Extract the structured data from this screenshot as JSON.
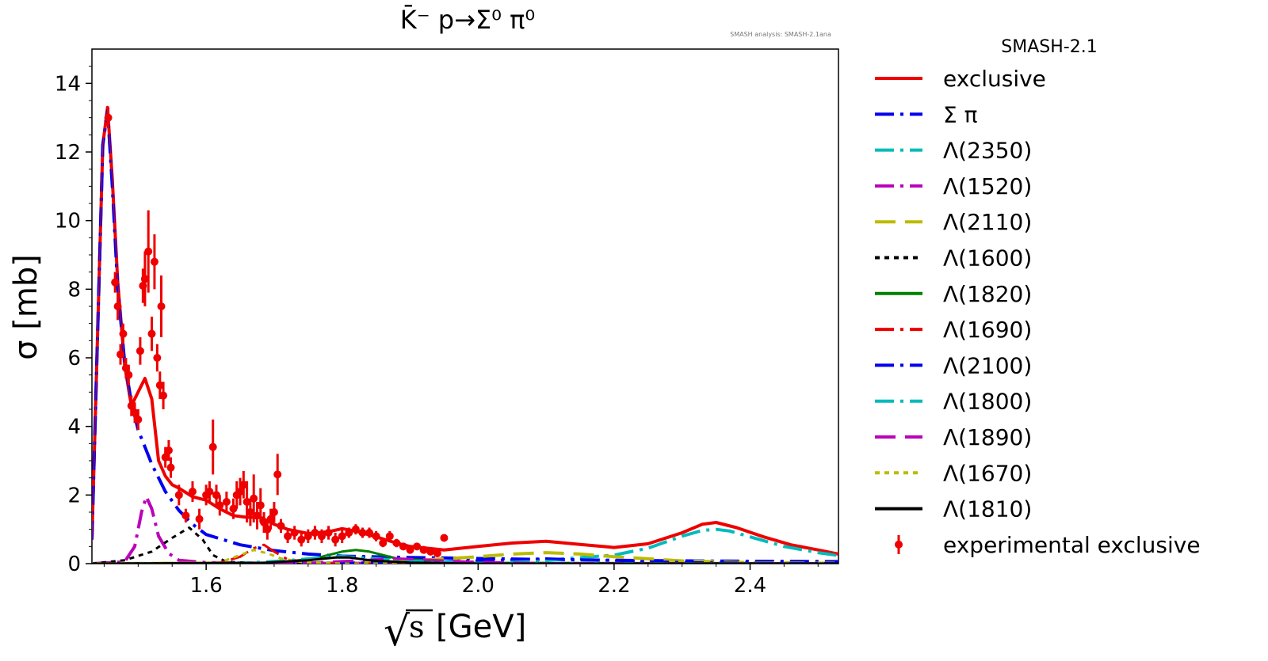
{
  "chart_data": {
    "type": "line",
    "title": "K̄⁻ p→Σ⁰ π⁰",
    "watermark": "SMASH analysis: SMASH-2.1ana",
    "xlabel_root": "√",
    "xlabel_s": "s",
    "xlabel_unit": "[GeV]",
    "ylabel": "σ [mb]",
    "xlim": [
      1.432,
      2.53
    ],
    "ylim": [
      0,
      15
    ],
    "xticks": [
      1.6,
      1.8,
      2.0,
      2.2,
      2.4
    ],
    "xtick_labels": [
      "1.6",
      "1.8",
      "2.0",
      "2.2",
      "2.4"
    ],
    "yticks": [
      0,
      2,
      4,
      6,
      8,
      10,
      12,
      14
    ],
    "ytick_labels": [
      "0",
      "2",
      "4",
      "6",
      "8",
      "10",
      "12",
      "14"
    ],
    "legend_title": "SMASH-2.1",
    "series": [
      {
        "name": "exclusive",
        "color": "#ee0000",
        "dash": "solid",
        "width": 4,
        "x": [
          1.432,
          1.44,
          1.448,
          1.455,
          1.462,
          1.47,
          1.48,
          1.49,
          1.5,
          1.51,
          1.52,
          1.53,
          1.54,
          1.55,
          1.56,
          1.58,
          1.6,
          1.62,
          1.64,
          1.66,
          1.68,
          1.7,
          1.72,
          1.75,
          1.78,
          1.8,
          1.82,
          1.85,
          1.88,
          1.9,
          1.95,
          2.0,
          2.05,
          2.1,
          2.15,
          2.2,
          2.25,
          2.3,
          2.33,
          2.35,
          2.38,
          2.42,
          2.46,
          2.5,
          2.53
        ],
        "y": [
          0.7,
          6.5,
          12.2,
          13.3,
          11.2,
          8.2,
          5.8,
          4.6,
          5.0,
          5.4,
          4.8,
          3.0,
          2.55,
          2.3,
          2.2,
          1.95,
          1.85,
          1.6,
          1.4,
          1.35,
          1.35,
          1.15,
          1.0,
          0.88,
          0.93,
          1.02,
          0.95,
          0.78,
          0.6,
          0.5,
          0.4,
          0.5,
          0.6,
          0.65,
          0.56,
          0.47,
          0.58,
          0.9,
          1.15,
          1.2,
          1.05,
          0.78,
          0.55,
          0.4,
          0.28
        ]
      },
      {
        "name": "Σ π",
        "color": "#0000ee",
        "dash": "long-dash-dot",
        "width": 4,
        "x": [
          1.432,
          1.44,
          1.448,
          1.455,
          1.462,
          1.47,
          1.48,
          1.49,
          1.5,
          1.52,
          1.54,
          1.56,
          1.58,
          1.6,
          1.65,
          1.7,
          1.75,
          1.8,
          1.9,
          2.0,
          2.1,
          2.2,
          2.3,
          2.4,
          2.53
        ],
        "y": [
          0.7,
          6.5,
          12.2,
          13.2,
          11,
          8.0,
          5.9,
          4.7,
          3.9,
          2.9,
          2.1,
          1.55,
          1.15,
          0.85,
          0.55,
          0.38,
          0.28,
          0.22,
          0.18,
          0.15,
          0.12,
          0.1,
          0.08,
          0.07,
          0.06
        ]
      },
      {
        "name": "Λ(2350)",
        "color": "#00bbbb",
        "dash": "long-dash-dot",
        "width": 4,
        "x": [
          1.432,
          1.9,
          2.0,
          2.1,
          2.2,
          2.25,
          2.3,
          2.33,
          2.35,
          2.37,
          2.4,
          2.45,
          2.5,
          2.53
        ],
        "y": [
          0,
          0.02,
          0.05,
          0.1,
          0.25,
          0.45,
          0.8,
          0.97,
          1.0,
          0.95,
          0.78,
          0.5,
          0.32,
          0.24
        ]
      },
      {
        "name": "Λ(1520)",
        "color": "#bb00bb",
        "dash": "long-dash-dot",
        "width": 4,
        "x": [
          1.432,
          1.48,
          1.495,
          1.505,
          1.512,
          1.52,
          1.53,
          1.545,
          1.56,
          1.6,
          1.7,
          2.53
        ],
        "y": [
          0,
          0.05,
          0.5,
          1.5,
          1.95,
          1.6,
          0.8,
          0.3,
          0.1,
          0.03,
          0.01,
          0
        ]
      },
      {
        "name": "Λ(2110)",
        "color": "#bbbb00",
        "dash": "long-dash",
        "width": 4,
        "x": [
          1.432,
          1.8,
          1.9,
          2.0,
          2.05,
          2.1,
          2.15,
          2.2,
          2.3,
          2.4,
          2.53
        ],
        "y": [
          0,
          0.02,
          0.08,
          0.2,
          0.28,
          0.32,
          0.28,
          0.2,
          0.08,
          0.03,
          0.01
        ]
      },
      {
        "name": "Λ(1600)",
        "color": "#000000",
        "dash": "dotted",
        "width": 3,
        "x": [
          1.432,
          1.48,
          1.52,
          1.55,
          1.575,
          1.595,
          1.61,
          1.63,
          1.7,
          2.53
        ],
        "y": [
          0,
          0.1,
          0.35,
          0.75,
          1.05,
          0.7,
          0.25,
          0.05,
          0,
          0
        ]
      },
      {
        "name": "Λ(1820)",
        "color": "#008000",
        "dash": "solid",
        "width": 3,
        "x": [
          1.432,
          1.7,
          1.76,
          1.8,
          1.82,
          1.84,
          1.88,
          1.95,
          2.0,
          2.53
        ],
        "y": [
          0,
          0.02,
          0.15,
          0.35,
          0.4,
          0.35,
          0.15,
          0.05,
          0.02,
          0
        ]
      },
      {
        "name": "Λ(1690)",
        "color": "#ee0000",
        "dash": "long-dash-dot",
        "width": 3,
        "x": [
          1.432,
          1.62,
          1.65,
          1.67,
          1.685,
          1.7,
          1.72,
          1.76,
          1.85,
          2.53
        ],
        "y": [
          0,
          0.02,
          0.2,
          0.45,
          0.55,
          0.35,
          0.12,
          0.03,
          0,
          0
        ]
      },
      {
        "name": "Λ(2100)",
        "color": "#0000ee",
        "dash": "long-dash-dot",
        "width": 3,
        "x": [
          1.432,
          1.8,
          1.95,
          2.05,
          2.1,
          2.15,
          2.25,
          2.35,
          2.53
        ],
        "y": [
          0,
          0.02,
          0.06,
          0.12,
          0.15,
          0.12,
          0.06,
          0.03,
          0.01
        ]
      },
      {
        "name": "Λ(1800)",
        "color": "#00bbbb",
        "dash": "long-dash-dot",
        "width": 3,
        "x": [
          1.432,
          1.65,
          1.72,
          1.78,
          1.8,
          1.83,
          1.9,
          2.0,
          2.53
        ],
        "y": [
          0,
          0.02,
          0.1,
          0.2,
          0.22,
          0.18,
          0.08,
          0.02,
          0
        ]
      },
      {
        "name": "Λ(1890)",
        "color": "#bb00bb",
        "dash": "long-dash",
        "width": 3,
        "x": [
          1.432,
          1.75,
          1.83,
          1.88,
          1.92,
          1.98,
          2.1,
          2.53
        ],
        "y": [
          0,
          0.02,
          0.1,
          0.15,
          0.12,
          0.06,
          0.01,
          0
        ]
      },
      {
        "name": "Λ(1670)",
        "color": "#bbbb00",
        "dash": "dotted",
        "width": 3,
        "x": [
          1.432,
          1.62,
          1.65,
          1.67,
          1.69,
          1.71,
          1.74,
          1.8,
          2.53
        ],
        "y": [
          0,
          0.03,
          0.25,
          0.4,
          0.3,
          0.15,
          0.05,
          0,
          0
        ]
      },
      {
        "name": "Λ(1810)",
        "color": "#000000",
        "dash": "solid",
        "width": 3,
        "x": [
          1.432,
          1.68,
          1.75,
          1.79,
          1.81,
          1.84,
          1.9,
          2.0,
          2.53
        ],
        "y": [
          0,
          0.02,
          0.1,
          0.18,
          0.18,
          0.1,
          0.03,
          0,
          0
        ]
      }
    ],
    "experimental": {
      "name": "experimental exclusive",
      "color": "#ee0000",
      "points": [
        [
          1.456,
          13.0,
          0.3
        ],
        [
          1.466,
          8.2,
          0.3
        ],
        [
          1.47,
          7.5,
          0.4
        ],
        [
          1.474,
          6.1,
          0.3
        ],
        [
          1.478,
          6.7,
          0.3
        ],
        [
          1.482,
          5.7,
          0.3
        ],
        [
          1.486,
          5.5,
          0.3
        ],
        [
          1.49,
          4.6,
          0.3
        ],
        [
          1.495,
          4.4,
          0.3
        ],
        [
          1.5,
          4.2,
          0.3
        ],
        [
          1.503,
          6.2,
          0.4
        ],
        [
          1.507,
          8.1,
          0.5
        ],
        [
          1.51,
          8.3,
          0.8
        ],
        [
          1.515,
          9.1,
          1.2
        ],
        [
          1.52,
          6.7,
          0.5
        ],
        [
          1.524,
          8.8,
          0.8
        ],
        [
          1.528,
          6.0,
          0.4
        ],
        [
          1.532,
          5.2,
          0.4
        ],
        [
          1.534,
          7.5,
          0.9
        ],
        [
          1.537,
          4.9,
          0.4
        ],
        [
          1.54,
          3.1,
          0.3
        ],
        [
          1.545,
          3.3,
          0.3
        ],
        [
          1.548,
          2.8,
          0.3
        ],
        [
          1.56,
          2.0,
          0.3
        ],
        [
          1.57,
          1.4,
          0.2
        ],
        [
          1.58,
          2.1,
          0.3
        ],
        [
          1.59,
          1.3,
          0.3
        ],
        [
          1.6,
          2.0,
          0.3
        ],
        [
          1.605,
          2.1,
          0.3
        ],
        [
          1.61,
          3.4,
          0.8
        ],
        [
          1.615,
          2.0,
          0.3
        ],
        [
          1.62,
          1.7,
          0.3
        ],
        [
          1.63,
          1.8,
          0.3
        ],
        [
          1.64,
          1.6,
          0.3
        ],
        [
          1.645,
          2.0,
          0.4
        ],
        [
          1.65,
          2.1,
          0.4
        ],
        [
          1.655,
          2.3,
          0.4
        ],
        [
          1.66,
          1.8,
          0.6
        ],
        [
          1.665,
          1.5,
          0.4
        ],
        [
          1.67,
          1.9,
          0.7
        ],
        [
          1.675,
          1.4,
          0.4
        ],
        [
          1.68,
          1.7,
          0.5
        ],
        [
          1.685,
          1.2,
          0.3
        ],
        [
          1.69,
          1.0,
          0.3
        ],
        [
          1.695,
          1.3,
          0.3
        ],
        [
          1.7,
          1.5,
          0.3
        ],
        [
          1.705,
          2.6,
          0.6
        ],
        [
          1.71,
          1.1,
          0.2
        ],
        [
          1.72,
          0.8,
          0.2
        ],
        [
          1.73,
          0.9,
          0.2
        ],
        [
          1.74,
          0.7,
          0.2
        ],
        [
          1.75,
          0.8,
          0.2
        ],
        [
          1.76,
          0.9,
          0.2
        ],
        [
          1.77,
          0.8,
          0.2
        ],
        [
          1.78,
          0.9,
          0.2
        ],
        [
          1.79,
          0.7,
          0.2
        ],
        [
          1.8,
          0.8,
          0.2
        ],
        [
          1.81,
          0.9,
          0.15
        ],
        [
          1.82,
          1.0,
          0.15
        ],
        [
          1.83,
          0.9,
          0.15
        ],
        [
          1.84,
          0.9,
          0.15
        ],
        [
          1.85,
          0.8,
          0.15
        ],
        [
          1.86,
          0.6,
          0.12
        ],
        [
          1.87,
          0.8,
          0.15
        ],
        [
          1.88,
          0.6,
          0.12
        ],
        [
          1.89,
          0.5,
          0.1
        ],
        [
          1.9,
          0.4,
          0.1
        ],
        [
          1.91,
          0.5,
          0.1
        ],
        [
          1.92,
          0.4,
          0.1
        ],
        [
          1.93,
          0.35,
          0.1
        ],
        [
          1.94,
          0.3,
          0.1
        ],
        [
          1.95,
          0.75,
          0.1
        ]
      ]
    },
    "legend_position": "right, outside plot"
  }
}
